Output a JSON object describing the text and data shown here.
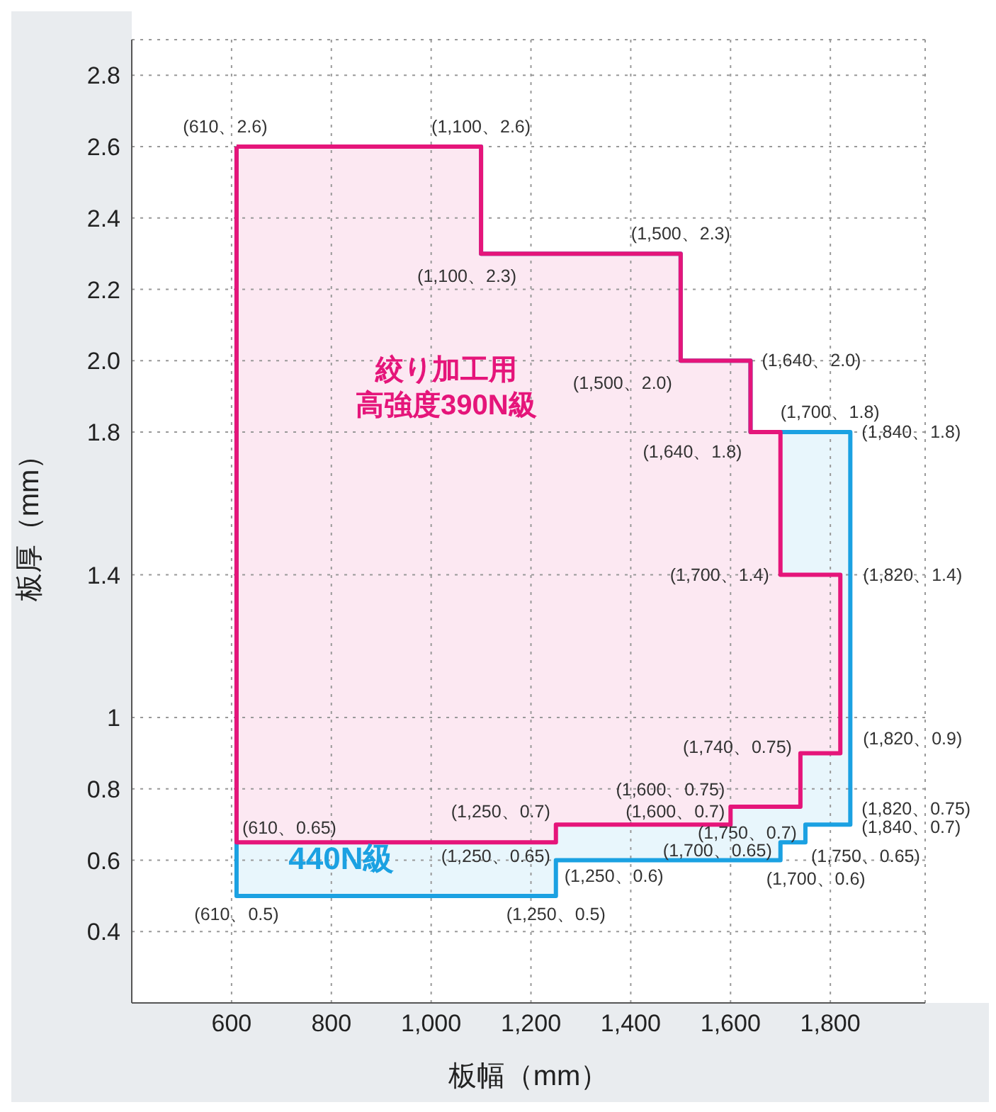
{
  "chart_data": {
    "type": "area",
    "xlabel": "板幅（mm）",
    "ylabel": "板厚（mm）",
    "xlim": [
      400,
      1990
    ],
    "xticks": [
      600,
      800,
      {
        "value": 1000,
        "label": "1,000"
      },
      {
        "value": 1200,
        "label": "1,200"
      },
      {
        "value": 1400,
        "label": "1,400"
      },
      {
        "value": 1600,
        "label": "1,600"
      },
      {
        "value": 1800,
        "label": "1,800"
      }
    ],
    "ylim": [
      0.2,
      2.9
    ],
    "yticks": [
      0.4,
      0.6,
      0.8,
      1,
      1.4,
      1.8,
      {
        "value": 2,
        "label": "2.0"
      },
      2.2,
      2.4,
      2.6,
      2.8
    ],
    "grid": true,
    "series": [
      {
        "name": "440N級",
        "color": "#1ba1e2",
        "x": [
          610,
          1100,
          1100,
          1500,
          1500,
          1640,
          1640,
          1840,
          1840,
          1750,
          1750,
          1700,
          1700,
          1250,
          1250,
          610,
          610
        ],
        "values": [
          2.6,
          2.6,
          2.3,
          2.3,
          2.0,
          2.0,
          1.8,
          1.8,
          0.7,
          0.7,
          0.65,
          0.65,
          0.6,
          0.6,
          0.5,
          0.5,
          2.6
        ]
      },
      {
        "name": "絞り加工用高強度390N級",
        "color": "#e5157a",
        "x": [
          610,
          1100,
          1100,
          1500,
          1500,
          1640,
          1640,
          1700,
          1700,
          1820,
          1820,
          1740,
          1740,
          1600,
          1600,
          1250,
          1250,
          610,
          610
        ],
        "values": [
          2.6,
          2.6,
          2.3,
          2.3,
          2.0,
          2.0,
          1.8,
          1.8,
          1.4,
          1.4,
          0.9,
          0.9,
          0.75,
          0.75,
          0.7,
          0.7,
          0.65,
          0.65,
          2.6
        ]
      }
    ],
    "annotations": [
      {
        "text": "(610、2.6)",
        "x": 610,
        "y": 2.6
      },
      {
        "text": "(1,100、2.6)",
        "x": 1100,
        "y": 2.6
      },
      {
        "text": "(1,100、2.3)",
        "x": 1100,
        "y": 2.3
      },
      {
        "text": "(1,500、2.3)",
        "x": 1500,
        "y": 2.3
      },
      {
        "text": "(1,500、2.0)",
        "x": 1500,
        "y": 2.0
      },
      {
        "text": "(1,640、2.0)",
        "x": 1640,
        "y": 2.0
      },
      {
        "text": "(1,640、1.8)",
        "x": 1640,
        "y": 1.8
      },
      {
        "text": "(1,700、1.8)",
        "x": 1700,
        "y": 1.8
      },
      {
        "text": "(1,840、1.8)",
        "x": 1840,
        "y": 1.8
      },
      {
        "text": "(1,700、1.4)",
        "x": 1700,
        "y": 1.4
      },
      {
        "text": "(1,820、1.4)",
        "x": 1820,
        "y": 1.4
      },
      {
        "text": "(1,820、0.9)",
        "x": 1820,
        "y": 0.9
      },
      {
        "text": "(1,740、0.75)",
        "x": 1740,
        "y": 0.75
      },
      {
        "text": "(1,600、0.75)",
        "x": 1600,
        "y": 0.75
      },
      {
        "text": "(1,600、0.7)",
        "x": 1600,
        "y": 0.7
      },
      {
        "text": "(1,750、0.7)",
        "x": 1750,
        "y": 0.7
      },
      {
        "text": "(1,700、0.65)",
        "x": 1700,
        "y": 0.65
      },
      {
        "text": "(1,750、0.65)",
        "x": 1750,
        "y": 0.65
      },
      {
        "text": "(1,840、0.7)",
        "x": 1840,
        "y": 0.7
      },
      "(1,820、0.75)",
      {
        "text": "(1,250、0.7)",
        "x": 1250,
        "y": 0.7
      },
      {
        "text": "(1,250、0.65)",
        "x": 1250,
        "y": 0.65
      },
      {
        "text": "(1,250、0.6)",
        "x": 1250,
        "y": 0.6
      },
      {
        "text": "(1,250、0.5)",
        "x": 1250,
        "y": 0.5
      },
      {
        "text": "(610、0.5)",
        "x": 610,
        "y": 0.5
      },
      {
        "text": "(610、0.65)",
        "x": 610,
        "y": 0.65
      },
      {
        "text": "(1,700、0.6)",
        "x": 1700,
        "y": 0.6
      }
    ]
  }
}
